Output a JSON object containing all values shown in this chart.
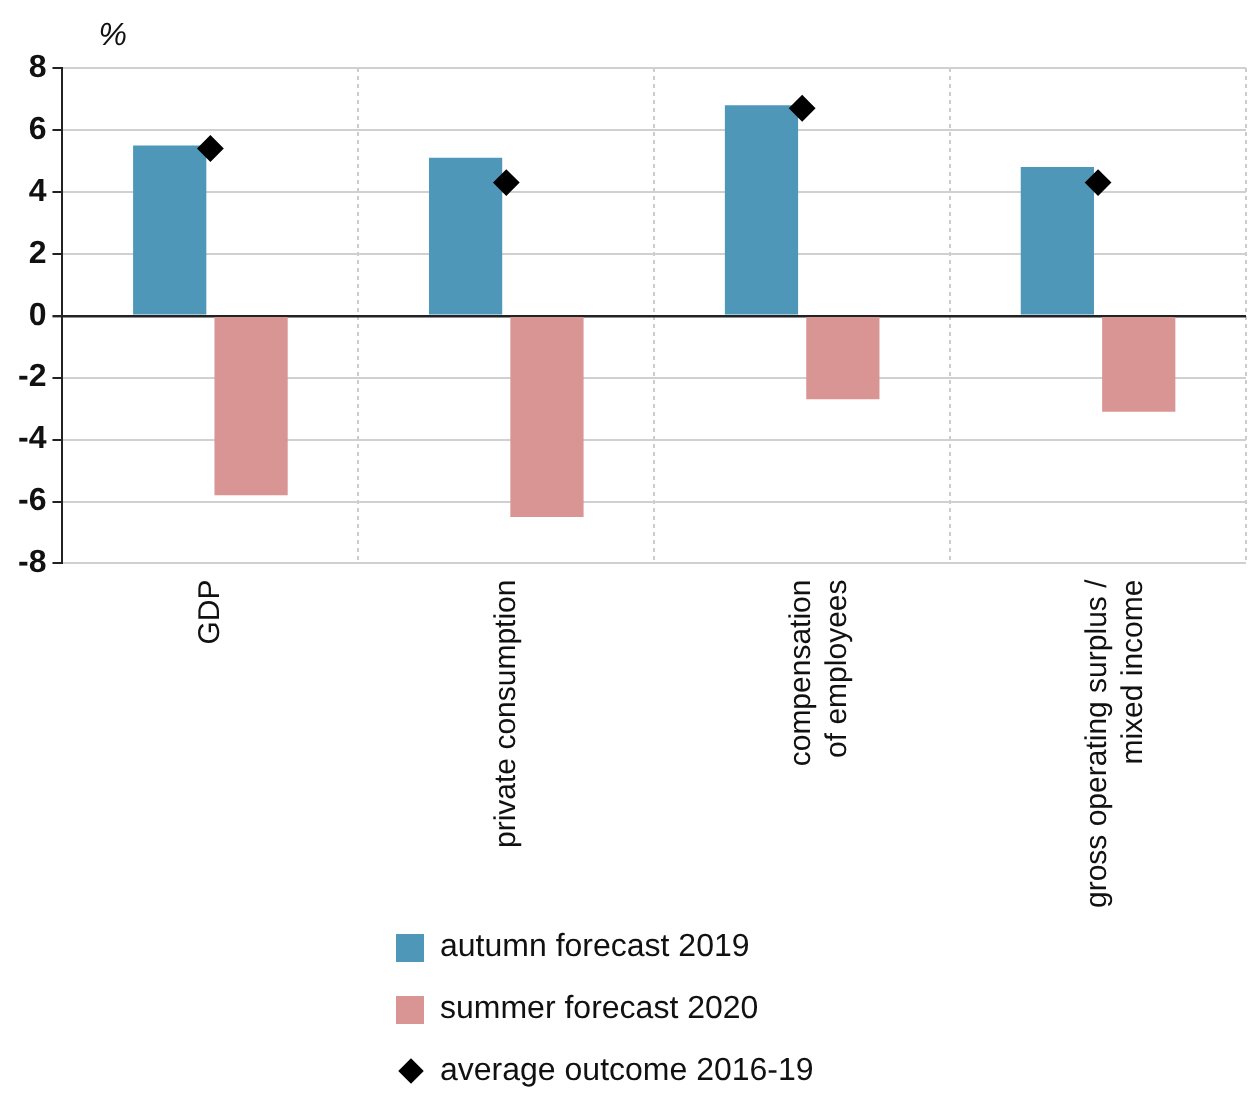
{
  "chart_data": {
    "type": "bar",
    "ylabel": "%",
    "categories": [
      "GDP",
      "private consumption",
      "compensation of employees",
      "gross operating surplus / mixed income"
    ],
    "series": [
      {
        "name": "autumn forecast 2019",
        "color": "#4f97b9",
        "values": [
          5.5,
          5.1,
          6.8,
          4.8
        ]
      },
      {
        "name": "summer forecast 2020",
        "color": "#d99594",
        "values": [
          -5.8,
          -6.5,
          -2.7,
          -3.1
        ]
      },
      {
        "name": "average outcome 2016-19",
        "type": "scatter",
        "color": "#000000",
        "marker": "diamond",
        "x": [
          "GDP",
          "private consumption",
          "compensation of employees",
          "gross operating surplus / mixed income"
        ],
        "values": [
          5.4,
          4.3,
          6.7,
          4.3
        ]
      }
    ],
    "ylim": [
      -8,
      8
    ],
    "yticks": [
      -8,
      -6,
      -4,
      -2,
      0,
      2,
      4,
      6,
      8
    ],
    "grid": true,
    "legend": "bottom"
  }
}
